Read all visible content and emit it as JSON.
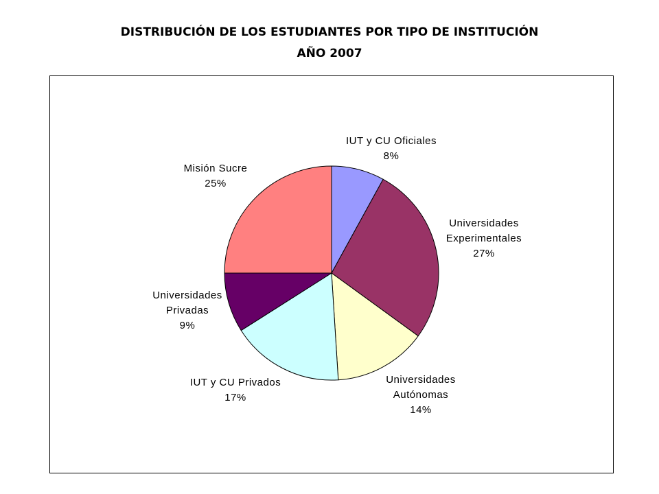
{
  "chart_data": {
    "type": "pie",
    "title": "DISTRIBUCIÓN DE LOS ESTUDIANTES POR TIPO DE INSTITUCIÓN",
    "subtitle": "AÑO 2007",
    "slices": [
      {
        "label": [
          "IUT y CU Oficiales"
        ],
        "value": 8,
        "pct_text": "8%",
        "color": "#9999FF"
      },
      {
        "label": [
          "Universidades",
          "Experimentales"
        ],
        "value": 27,
        "pct_text": "27%",
        "color": "#993366"
      },
      {
        "label": [
          "Universidades",
          "Autónomas"
        ],
        "value": 14,
        "pct_text": "14%",
        "color": "#FFFFCC"
      },
      {
        "label": [
          "IUT y CU Privados"
        ],
        "value": 17,
        "pct_text": "17%",
        "color": "#CCFFFF"
      },
      {
        "label": [
          "Universidades",
          "Privadas"
        ],
        "value": 9,
        "pct_text": "9%",
        "color": "#660066"
      },
      {
        "label": [
          "Misión Sucre"
        ],
        "value": 25,
        "pct_text": "25%",
        "color": "#FF8080"
      }
    ],
    "legend": "none"
  }
}
